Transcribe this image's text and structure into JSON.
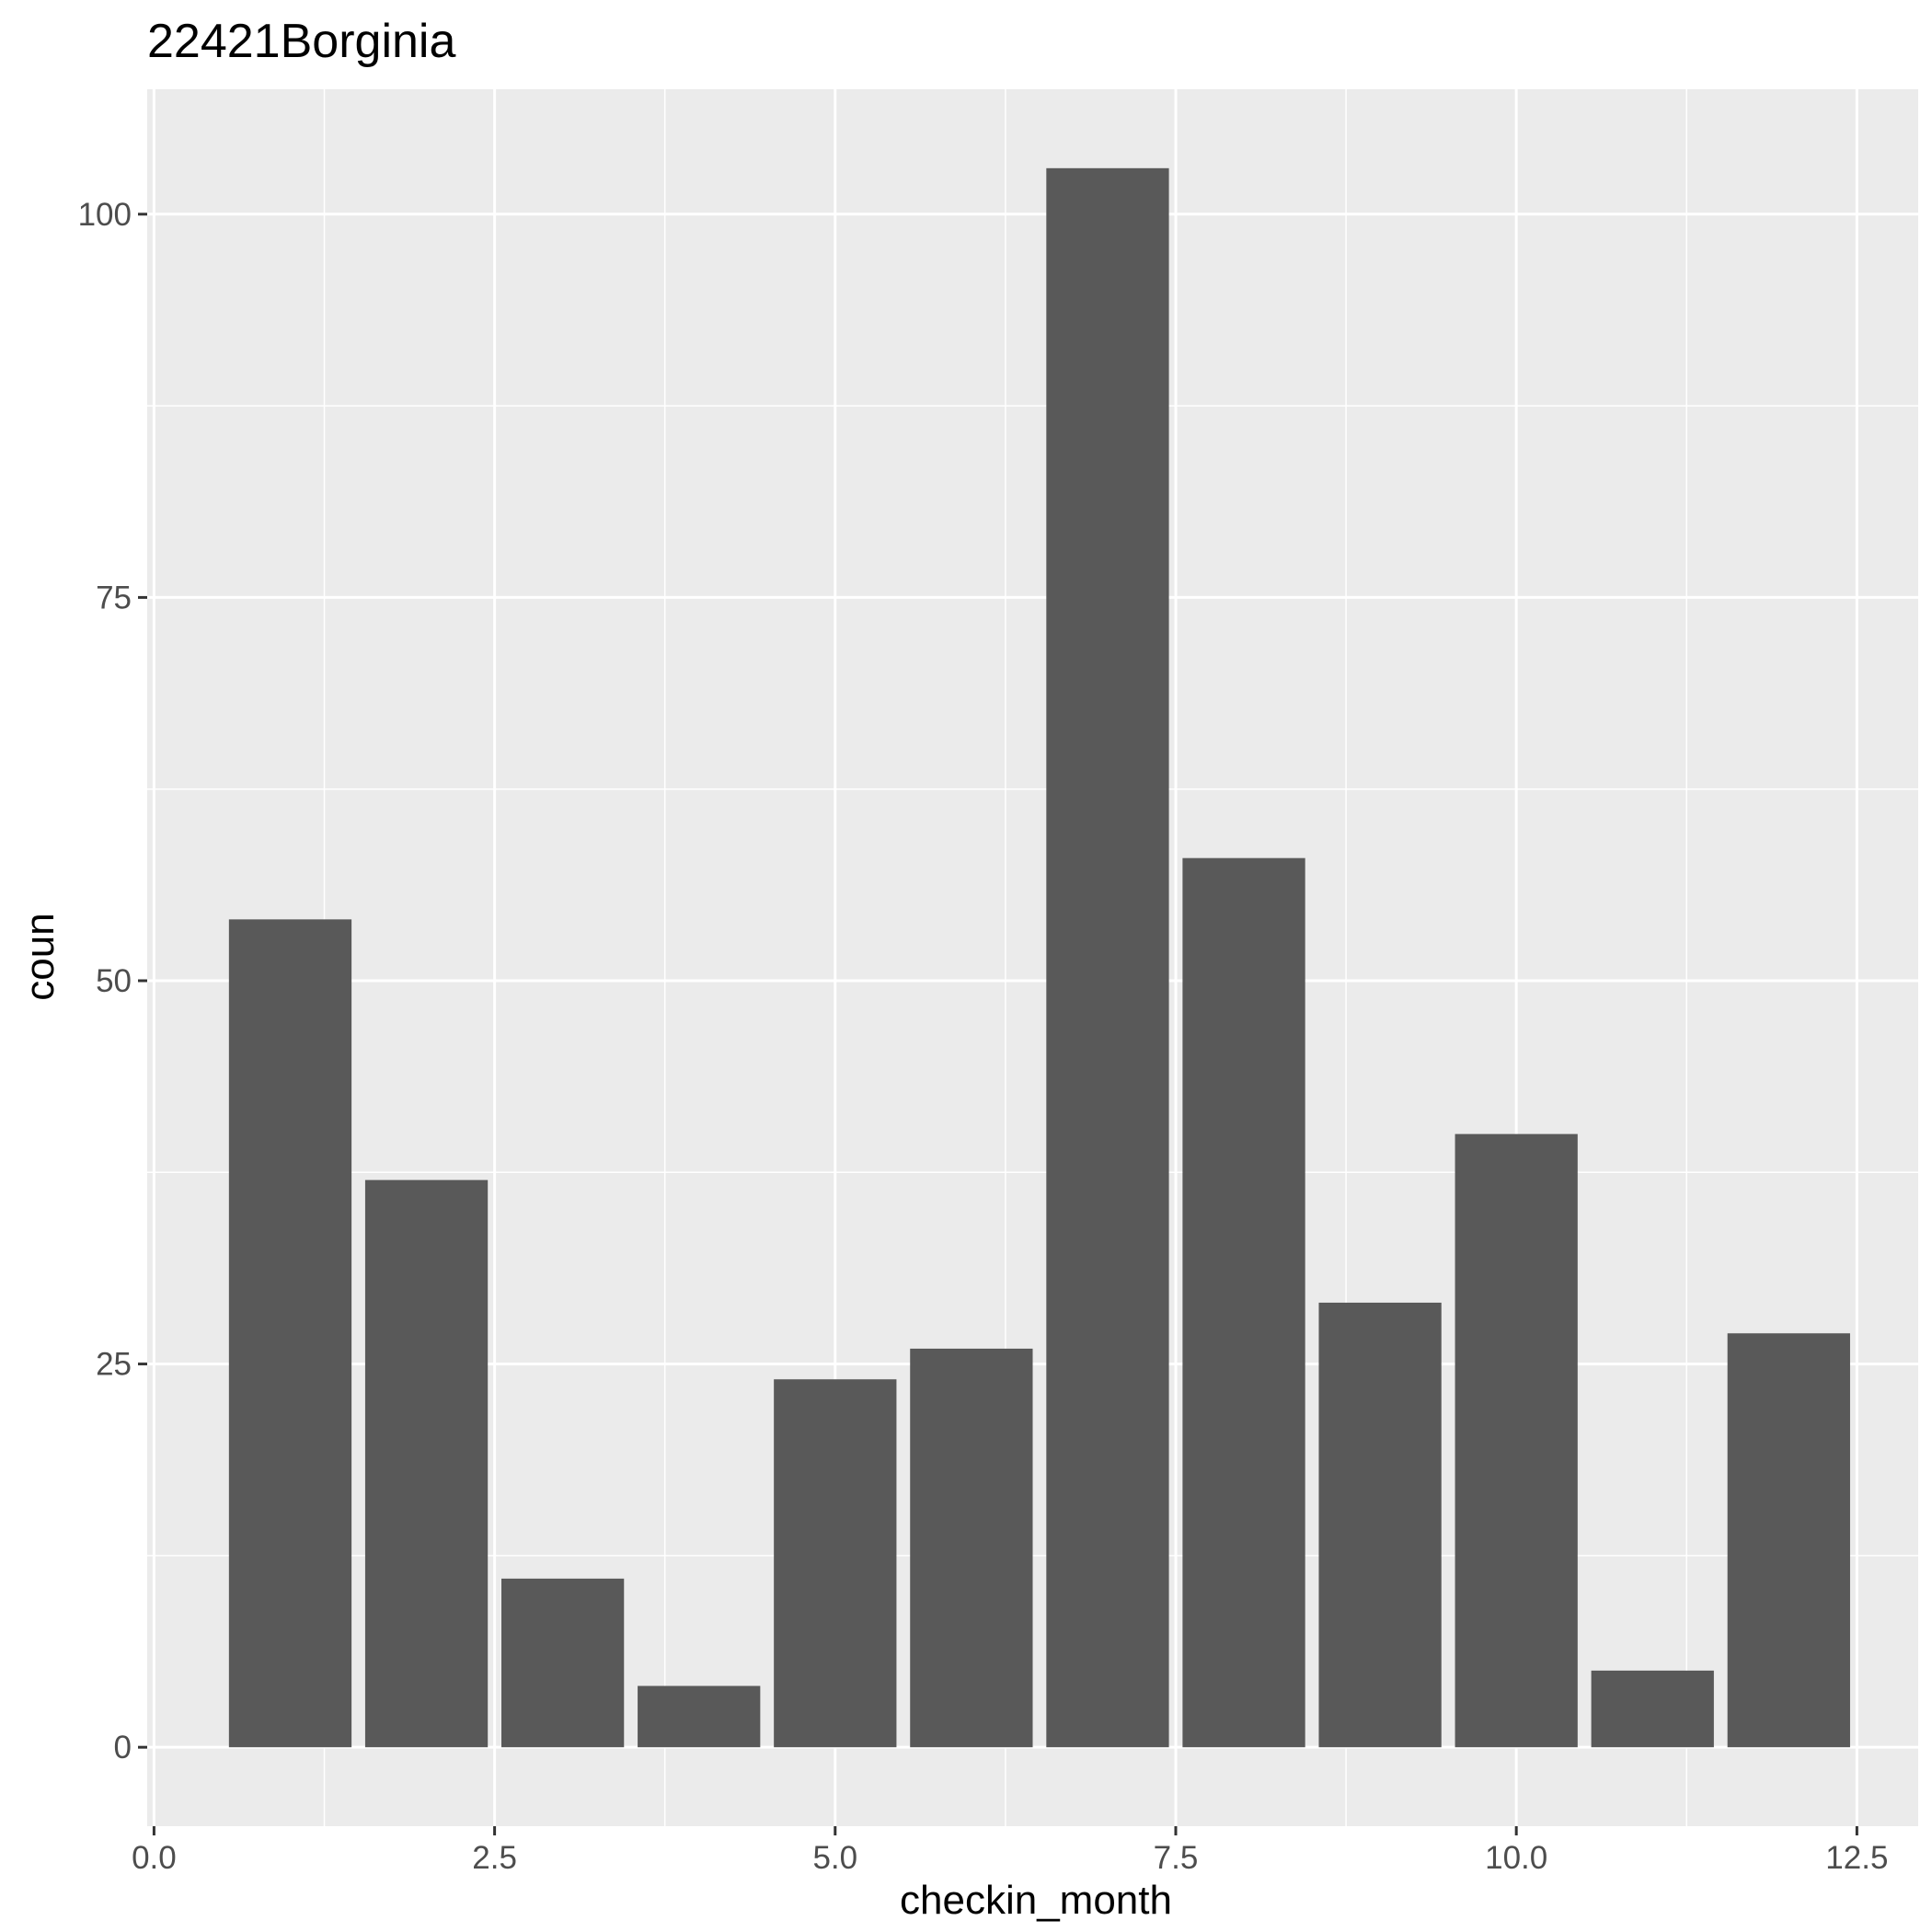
{
  "chart_data": {
    "type": "bar",
    "title": "22421Borginia",
    "xlabel": "checkin_month",
    "ylabel": "coun",
    "x": [
      1,
      2,
      3,
      4,
      5,
      6,
      7,
      8,
      9,
      10,
      11,
      12
    ],
    "values": [
      54,
      37,
      11,
      4,
      24,
      26,
      103,
      58,
      29,
      40,
      5,
      27
    ],
    "xlim": [
      -0.05,
      12.95
    ],
    "ylim": [
      -5.15,
      108.15
    ],
    "x_ticks": [
      {
        "value": 0,
        "label": "0.0"
      },
      {
        "value": 2.5,
        "label": "2.5"
      },
      {
        "value": 5,
        "label": "5.0"
      },
      {
        "value": 7.5,
        "label": "7.5"
      },
      {
        "value": 10,
        "label": "10.0"
      },
      {
        "value": 12.5,
        "label": "12.5"
      }
    ],
    "y_ticks": [
      {
        "value": 0,
        "label": "0"
      },
      {
        "value": 25,
        "label": "25"
      },
      {
        "value": 50,
        "label": "50"
      },
      {
        "value": 75,
        "label": "75"
      },
      {
        "value": 100,
        "label": "100"
      }
    ],
    "grid": true,
    "colors": {
      "panel": "#ebebeb",
      "bar": "#595959",
      "grid_major": "#ffffff",
      "tick": "#333333"
    }
  }
}
